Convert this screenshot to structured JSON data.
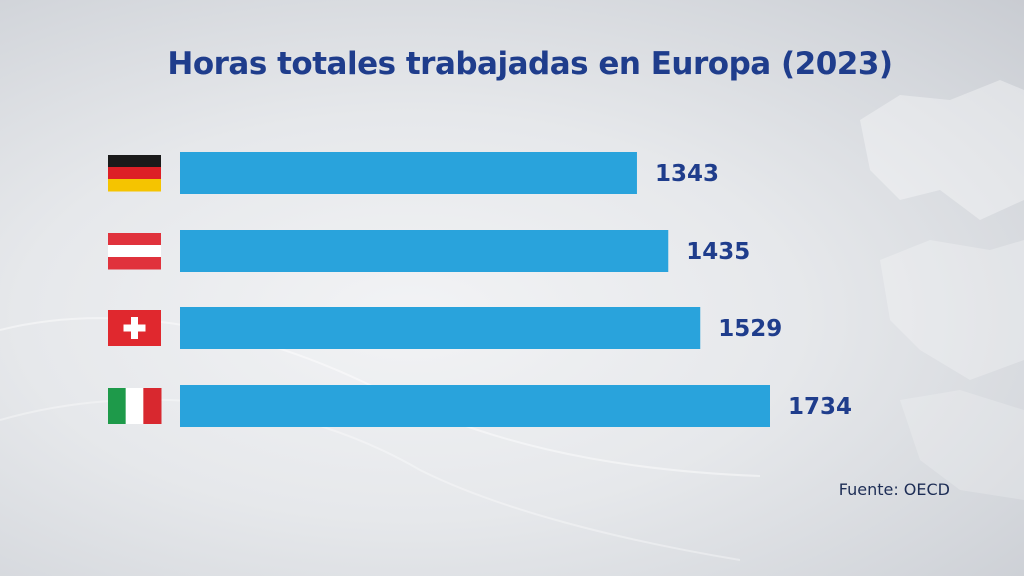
{
  "chart_data": {
    "type": "bar",
    "orientation": "horizontal",
    "title": "Horas totales trabajadas en Europa (2023)",
    "categories": [
      "Alemania",
      "Austria",
      "Suiza",
      "Italia"
    ],
    "values": [
      1343,
      1435,
      1529,
      1734
    ],
    "value_labels": [
      "1343",
      "1435",
      "1529",
      "1734"
    ],
    "category_icons": [
      "germany-flag-icon",
      "austria-flag-icon",
      "switzerland-flag-icon",
      "italy-flag-icon"
    ],
    "xlim": [
      0,
      2000
    ],
    "grid": false,
    "legend": "none",
    "bar_color": "#29a3dc",
    "label_color": "#1f3d8c",
    "title_color": "#1f3d8c"
  },
  "source": "Fuente: OECD"
}
